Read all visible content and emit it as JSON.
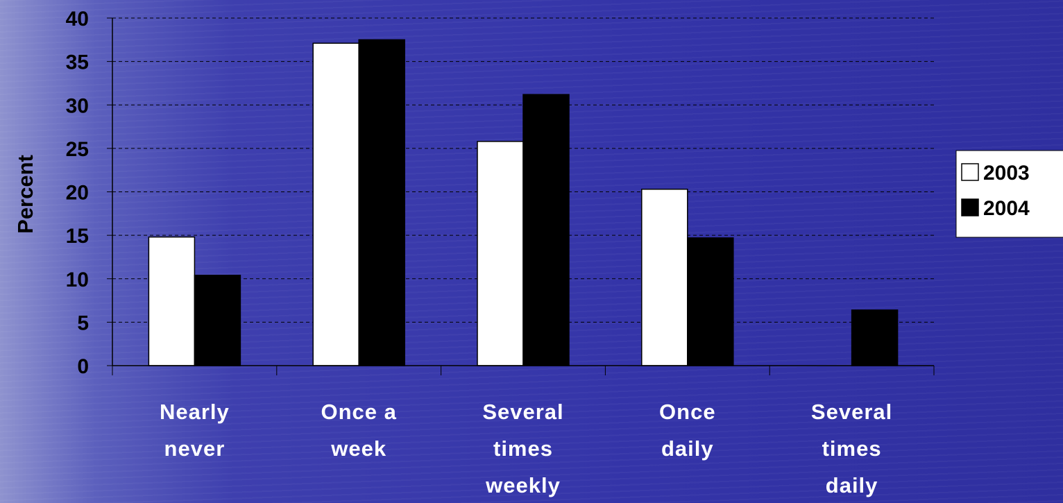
{
  "chart_data": {
    "type": "bar",
    "title": "",
    "xlabel": "",
    "ylabel": "Percent",
    "ylim": [
      0,
      40
    ],
    "yticks": [
      0,
      5,
      10,
      15,
      20,
      25,
      30,
      35,
      40
    ],
    "grid": true,
    "legend_position": "right",
    "categories": [
      [
        "Nearly",
        "never"
      ],
      [
        "Once a",
        "week"
      ],
      [
        "Several",
        "times",
        "weekly"
      ],
      [
        "Once",
        "daily"
      ],
      [
        "Several",
        "times",
        "daily"
      ]
    ],
    "series": [
      {
        "name": "2003",
        "color": "#ffffff",
        "values": [
          14.8,
          37.1,
          25.8,
          20.3,
          0
        ]
      },
      {
        "name": "2004",
        "color": "#000000",
        "values": [
          10.4,
          37.5,
          31.2,
          14.7,
          6.4
        ]
      }
    ]
  }
}
